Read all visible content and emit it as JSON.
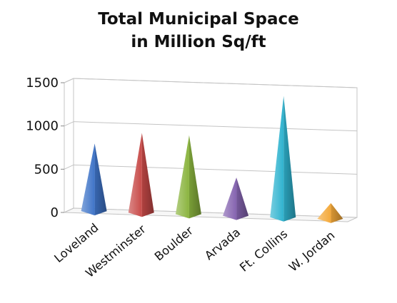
{
  "chart_data": {
    "type": "bar",
    "subtype": "3d-pyramid",
    "title_lines": [
      "Total Municipal Space",
      "in Million Sq/ft"
    ],
    "categories": [
      "Loveland",
      "Westminster",
      "Boulder",
      "Arvada",
      "Ft. Collins",
      "W. Jordan"
    ],
    "values": [
      790,
      930,
      920,
      450,
      1410,
      190
    ],
    "ylim": [
      0,
      1500
    ],
    "yticks": [
      0,
      500,
      1000,
      1500
    ],
    "grid": true,
    "legend": "none",
    "colors": [
      "#3f74c8",
      "#c84a48",
      "#8ab43e",
      "#8564b0",
      "#2fb3cf",
      "#f4a93a"
    ]
  }
}
